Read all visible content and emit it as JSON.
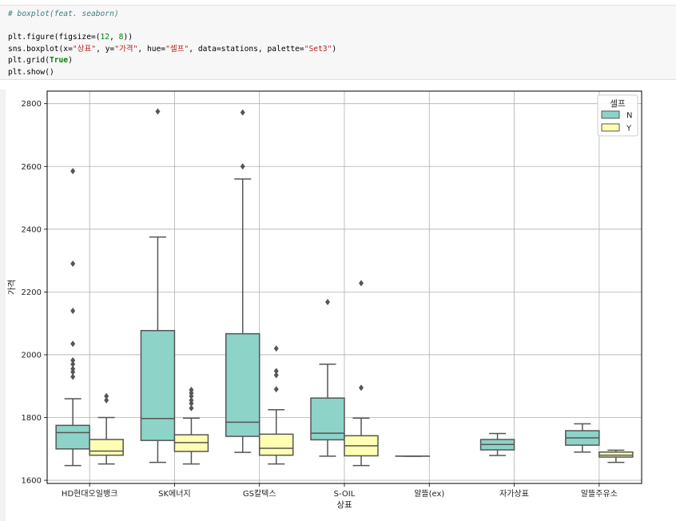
{
  "code": {
    "comment": "# boxplot(feat. seaborn)",
    "line_figure_pre": "plt.figure(figsize=(",
    "figsize_w": "12",
    "figsize_sep": ", ",
    "figsize_h": "8",
    "line_figure_post": "))",
    "bp_1": "sns.boxplot(x=",
    "bp_x": "\"상표\"",
    "bp_2": ", y=",
    "bp_y": "\"가격\"",
    "bp_3": ", hue=",
    "bp_hue": "\"셀프\"",
    "bp_4": ", data=stations, palette=",
    "bp_pal": "\"Set3\"",
    "bp_5": ")",
    "grid_pre": "plt.grid(",
    "grid_true": "True",
    "grid_post": ")",
    "show": "plt.show()"
  },
  "chart_data": {
    "type": "box",
    "xlabel": "상표",
    "ylabel": "가격",
    "ylim": [
      1590,
      2840
    ],
    "yticks": [
      1600,
      1800,
      2000,
      2200,
      2400,
      2600,
      2800
    ],
    "grid": true,
    "legend": {
      "title": "셀프",
      "placement": "top-right",
      "entries": [
        "N",
        "Y"
      ]
    },
    "colors": {
      "N": "#8dd3c7",
      "Y": "#ffffb3",
      "line": "#555555",
      "grid": "#b0b0b0"
    },
    "categories": [
      "HD현대오일뱅크",
      "SK에너지",
      "GS칼텍스",
      "S-OIL",
      "알뜰(ex)",
      "자가상표",
      "알뜰주유소"
    ],
    "series": [
      {
        "name": "N",
        "boxes": [
          {
            "whislo": 1647,
            "q1": 1700,
            "med": 1752,
            "q3": 1775,
            "whishi": 1860,
            "fliers": [
              1930,
              1945,
              1955,
              1970,
              1982,
              2035,
              2140,
              2290,
              2585
            ]
          },
          {
            "whislo": 1657,
            "q1": 1727,
            "med": 1797,
            "q3": 2077,
            "whishi": 2375,
            "fliers": [
              2775
            ]
          },
          {
            "whislo": 1689,
            "q1": 1740,
            "med": 1785,
            "q3": 2067,
            "whishi": 2560,
            "fliers": [
              2600,
              2772
            ]
          },
          {
            "whislo": 1677,
            "q1": 1729,
            "med": 1750,
            "q3": 1862,
            "whishi": 1970,
            "fliers": [
              2168
            ]
          },
          {
            "whislo": 1677,
            "q1": 1677,
            "med": 1677,
            "q3": 1677,
            "whishi": 1677,
            "fliers": []
          },
          {
            "whislo": 1679,
            "q1": 1697,
            "med": 1714,
            "q3": 1730,
            "whishi": 1749,
            "fliers": []
          },
          {
            "whislo": 1690,
            "q1": 1712,
            "med": 1735,
            "q3": 1758,
            "whishi": 1780,
            "fliers": []
          }
        ]
      },
      {
        "name": "Y",
        "boxes": [
          {
            "whislo": 1652,
            "q1": 1680,
            "med": 1693,
            "q3": 1730,
            "whishi": 1800,
            "fliers": [
              1855,
              1868
            ]
          },
          {
            "whislo": 1652,
            "q1": 1692,
            "med": 1720,
            "q3": 1745,
            "whishi": 1798,
            "fliers": [
              1830,
              1845,
              1855,
              1868,
              1878,
              1888
            ]
          },
          {
            "whislo": 1652,
            "q1": 1680,
            "med": 1702,
            "q3": 1747,
            "whishi": 1825,
            "fliers": [
              1890,
              1935,
              1948,
              2020
            ]
          },
          {
            "whislo": 1647,
            "q1": 1678,
            "med": 1710,
            "q3": 1742,
            "whishi": 1798,
            "fliers": [
              1895,
              2228
            ]
          },
          null,
          null,
          {
            "whislo": 1657,
            "q1": 1674,
            "med": 1680,
            "q3": 1690,
            "whishi": 1696,
            "fliers": []
          }
        ]
      }
    ]
  }
}
